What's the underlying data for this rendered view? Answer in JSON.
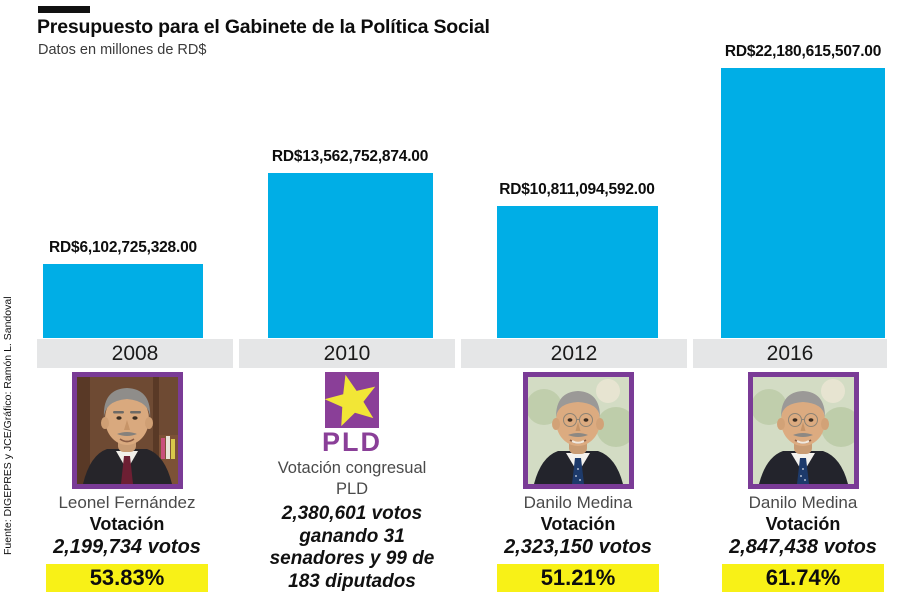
{
  "header": {
    "title": "Presupuesto para el Gabinete de la Política Social",
    "subtitle": "Datos en millones de RD$"
  },
  "source": "Fuente: DIGEPRES y JCE/Gráfico: Ramón L. Sandoval",
  "colors": {
    "bar": "#00AEE6",
    "year_band": "#E5E6E7",
    "percent_highlight": "#F8F117",
    "photo_border": "#7A3B96",
    "pld_purple": "#8A3F98",
    "star_yellow": "#F2E636"
  },
  "chart_data": {
    "type": "bar",
    "title": "Presupuesto para el Gabinete de la Política Social",
    "subtitle": "Datos en millones de RD$",
    "categories": [
      "2008",
      "2010",
      "2012",
      "2016"
    ],
    "values": [
      6102725328.0,
      13562752874.0,
      10811094592.0,
      22180615507.0
    ],
    "value_labels": [
      "RD$6,102,725,328.00",
      "RD$13,562,752,874.00",
      "RD$10,811,094,592.00",
      "RD$22,180,615,507.00"
    ],
    "ylim": [
      0,
      22180615507
    ],
    "grid": false,
    "legend": false,
    "bar_color": "#00AEE6"
  },
  "columns": [
    {
      "year": "2008",
      "name": "Leonel Fernández",
      "vote_label": "Votación",
      "votes": "2,199,734 votos",
      "percent": "53.83%"
    },
    {
      "year": "2010",
      "logo_text": "PLD",
      "name_line1": "Votación congresual",
      "name_line2": "PLD",
      "votes_lines": [
        "2,380,601 votos",
        "ganando 31",
        "senadores y 99 de",
        "183 diputados"
      ]
    },
    {
      "year": "2012",
      "name": "Danilo Medina",
      "vote_label": "Votación",
      "votes": "2,323,150 votos",
      "percent": "51.21%"
    },
    {
      "year": "2016",
      "name": "Danilo Medina",
      "vote_label": "Votación",
      "votes": "2,847,438 votos",
      "percent": "61.74%"
    }
  ]
}
